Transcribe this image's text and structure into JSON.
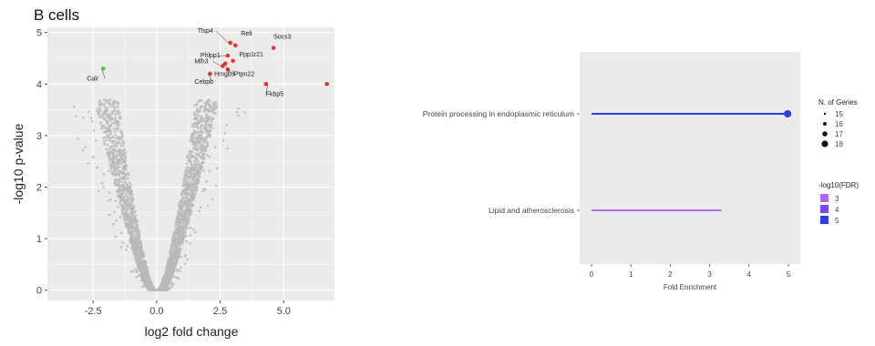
{
  "chart_data": [
    {
      "type": "scatter",
      "title": "B cells",
      "xlabel": "log2 fold change",
      "ylabel": "-log10 p-value",
      "xlim": [
        -4.3,
        7.0
      ],
      "ylim": [
        -0.2,
        5.1
      ],
      "xticks": [
        "-2.5",
        "0.0",
        "2.5",
        "5.0"
      ],
      "xtick_values": [
        -2.5,
        0.0,
        2.5,
        5.0
      ],
      "yticks": [
        "0",
        "1",
        "2",
        "3",
        "4",
        "5"
      ],
      "ytick_values": [
        0,
        1,
        2,
        3,
        4,
        5
      ],
      "grid": true,
      "colors": {
        "background": "#ebebeb",
        "grid": "#ffffff",
        "points": "#b8b8b8",
        "up": "#e8322c",
        "down": "#4fd34b"
      },
      "highlighted_genes": [
        {
          "label": "Tlsp4",
          "x": 2.9,
          "y": 4.8,
          "color": "#e8322c"
        },
        {
          "label": "Relt",
          "x": 3.1,
          "y": 4.75,
          "color": "#e8322c"
        },
        {
          "label": "Socs3",
          "x": 4.6,
          "y": 4.7,
          "color": "#e8322c"
        },
        {
          "label": "Phlpp1",
          "x": 2.8,
          "y": 4.55,
          "color": "#e8322c"
        },
        {
          "label": "Ppp1r21",
          "x": 3.0,
          "y": 4.45,
          "color": "#e8322c"
        },
        {
          "label": "Mlh3",
          "x": 2.6,
          "y": 4.35,
          "color": "#e8322c"
        },
        {
          "label": "Ptpn22",
          "x": 2.8,
          "y": 4.28,
          "color": "#e8322c"
        },
        {
          "label": "Cebpb",
          "x": 2.1,
          "y": 4.2,
          "color": "#e8322c"
        },
        {
          "label": "Hmgb3",
          "x": 2.7,
          "y": 4.4,
          "color": "#e8322c"
        },
        {
          "label": "Fkbp5",
          "x": 4.3,
          "y": 4.0,
          "color": "#e8322c"
        },
        {
          "label": "",
          "x": 6.7,
          "y": 4.0,
          "color": "#e8322c"
        },
        {
          "label": "Calr",
          "x": -2.1,
          "y": 4.3,
          "color": "#4fd34b"
        }
      ],
      "background_points": {
        "count": 3200,
        "seed": 7,
        "shape": "volcano-v"
      }
    },
    {
      "type": "lollipop",
      "xlabel": "Fold Enrichment",
      "xlim": [
        -0.3,
        5.3
      ],
      "xticks": [
        "0",
        "1",
        "2",
        "3",
        "4",
        "5"
      ],
      "xtick_values": [
        0,
        1,
        2,
        3,
        4,
        5
      ],
      "categories": [
        "Protein processing in endoplasmic reticulum",
        "Lipid and atherosclerosis"
      ],
      "values": [
        4.98,
        3.3
      ],
      "n_genes": [
        18,
        15
      ],
      "neg_log10_fdr": [
        5,
        3
      ],
      "colors": {
        "background": "#ebebeb",
        "fdr_3": "#b06cf0",
        "fdr_4": "#7a48e8",
        "fdr_5": "#2a3fe0"
      },
      "legend": {
        "size_title": "N. of Genes",
        "size_entries": [
          "15",
          "16",
          "17",
          "18"
        ],
        "size_values": [
          15,
          16,
          17,
          18
        ],
        "color_title": "-log10(FDR)",
        "color_entries": [
          "3",
          "4",
          "5"
        ],
        "color_hex": [
          "#b06cf0",
          "#7a48e8",
          "#2a3fe0"
        ]
      }
    }
  ]
}
